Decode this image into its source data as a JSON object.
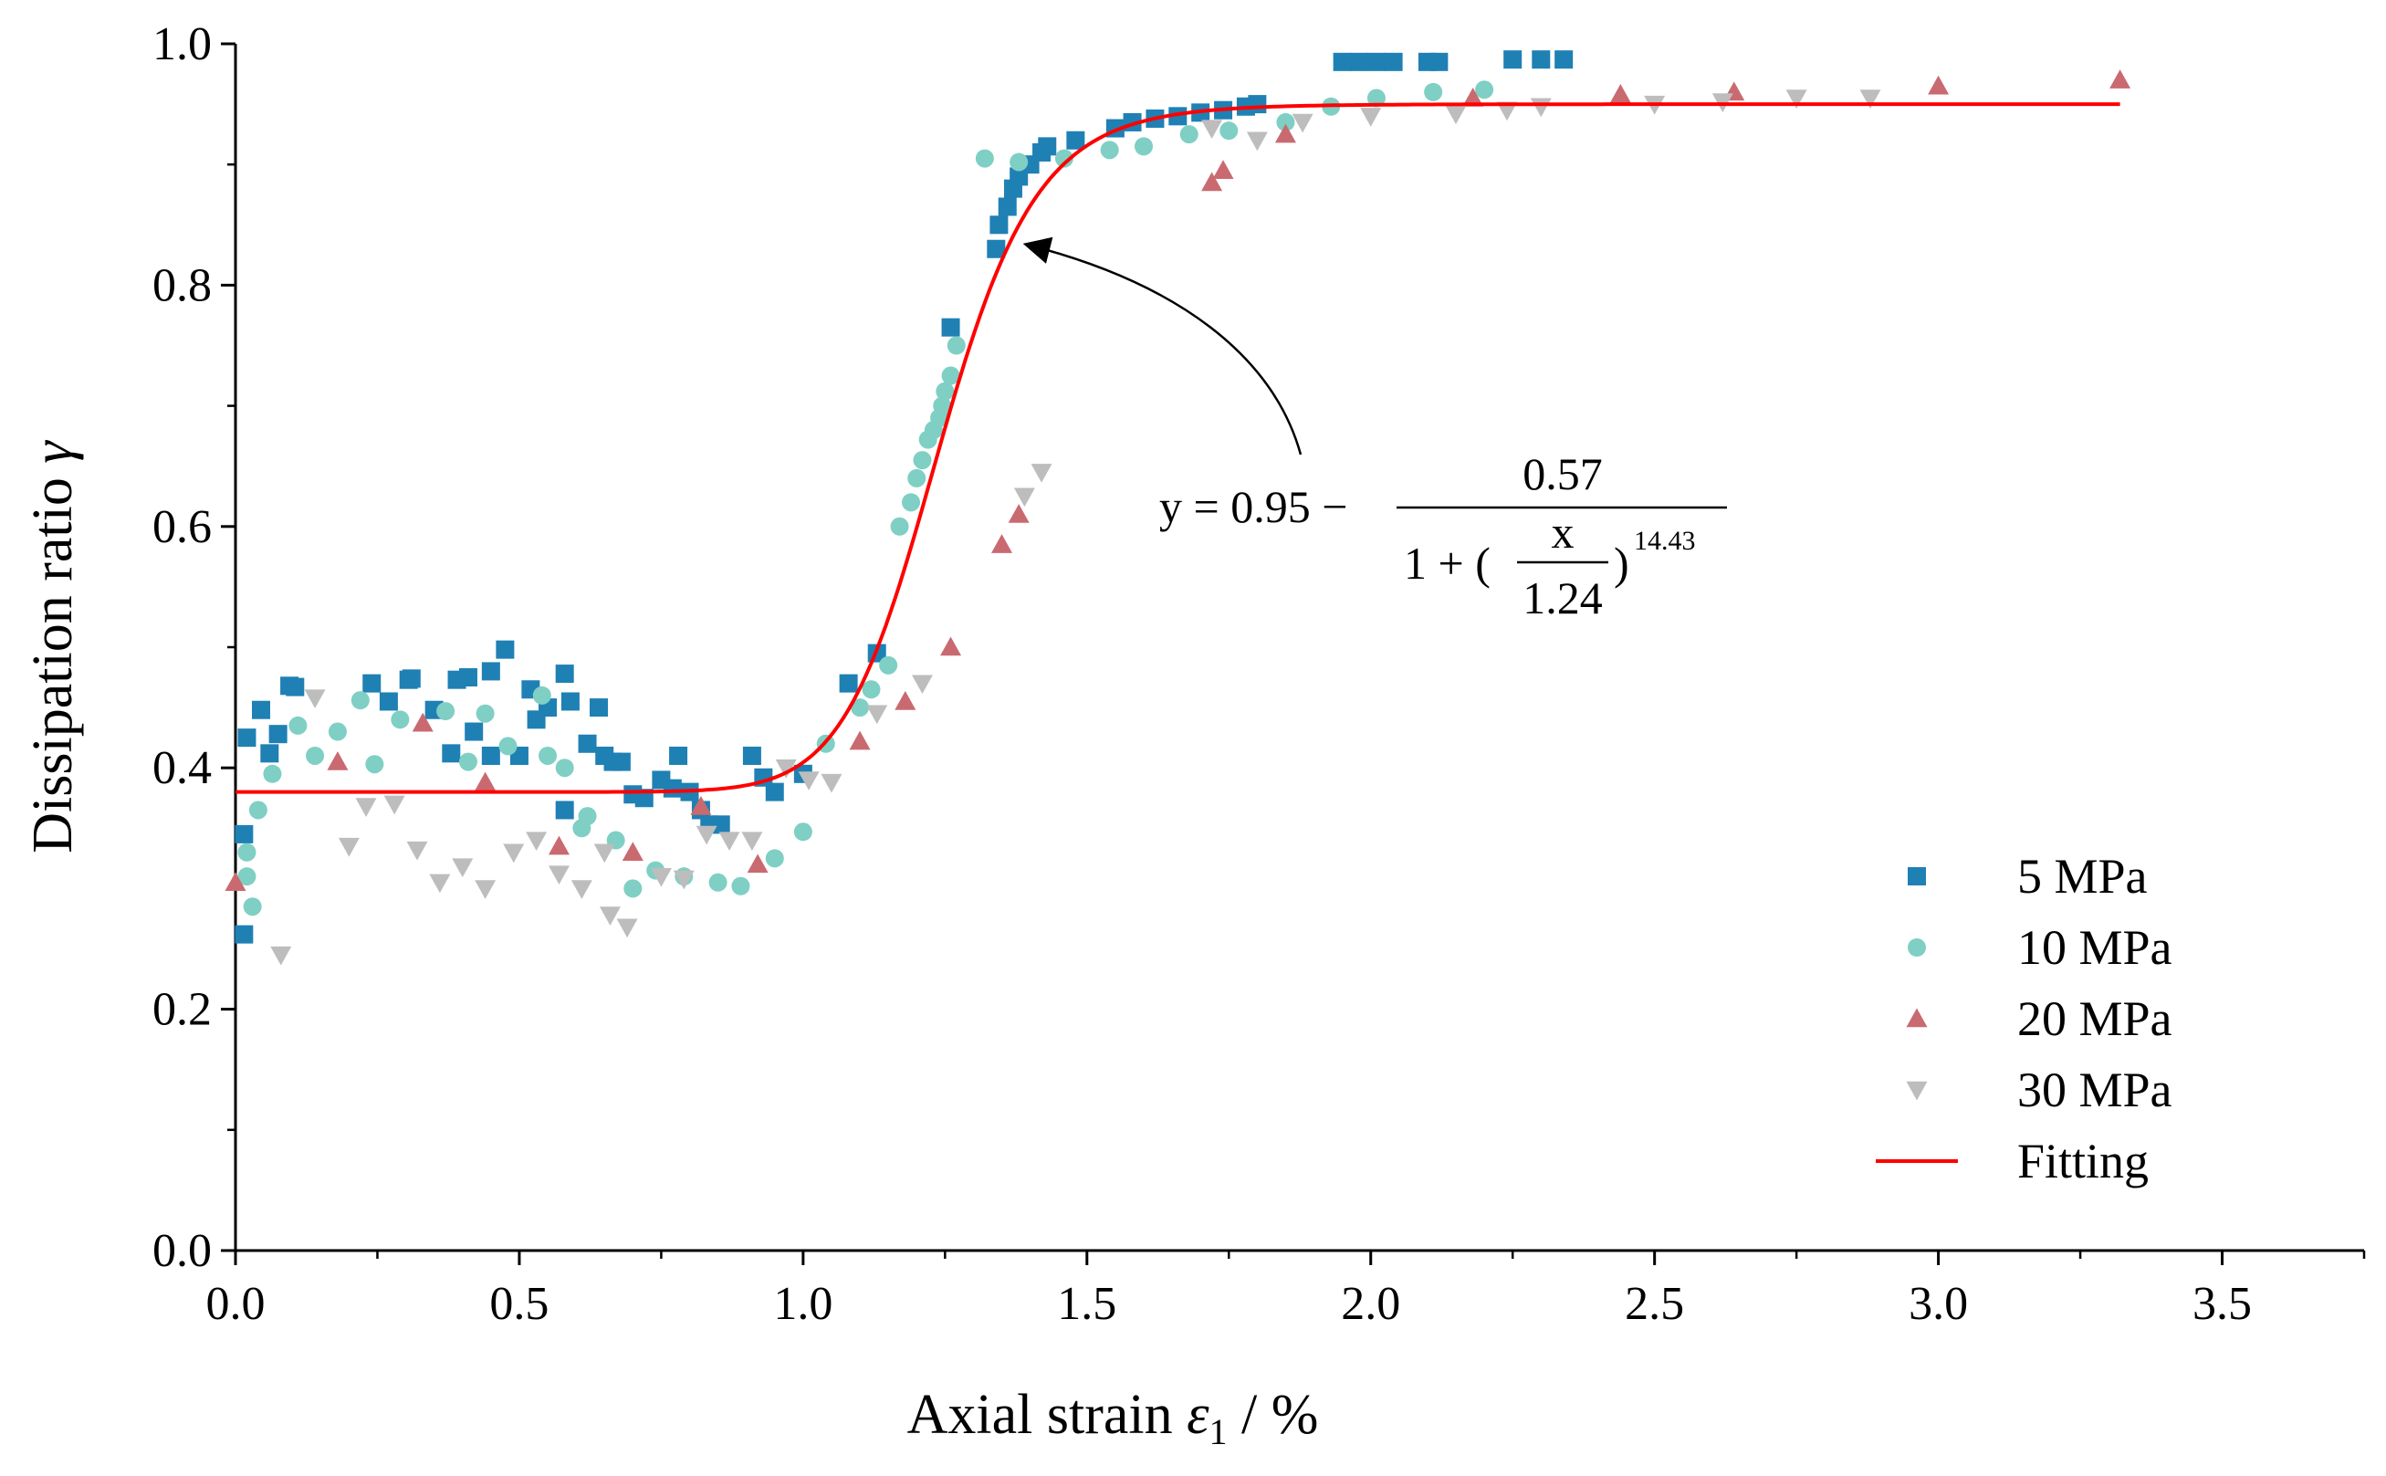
{
  "chart_data": {
    "type": "scatter",
    "xlabel": "Axial strain",
    "xlabel_symbol": "ε",
    "xlabel_subscript": "1",
    "xlabel_unit": "/ %",
    "ylabel": "Dissipation ratio",
    "ylabel_symbol": "γ",
    "xlim": [
      0,
      3.75
    ],
    "ylim": [
      0,
      1.0
    ],
    "xticks": [
      "0.0",
      "0.5",
      "1.0",
      "1.5",
      "2.0",
      "2.5",
      "3.0",
      "3.5"
    ],
    "yticks": [
      "0.0",
      "0.2",
      "0.4",
      "0.6",
      "0.8",
      "1.0"
    ],
    "grid": false,
    "legend_position": "bottom-right",
    "series": [
      {
        "name": "5  MPa",
        "marker": "square",
        "color": "#1f80b4",
        "points": [
          [
            0.015,
            0.262
          ],
          [
            0.015,
            0.345
          ],
          [
            0.02,
            0.425
          ],
          [
            0.045,
            0.448
          ],
          [
            0.06,
            0.412
          ],
          [
            0.075,
            0.428
          ],
          [
            0.095,
            0.468
          ],
          [
            0.105,
            0.467
          ],
          [
            0.24,
            0.47
          ],
          [
            0.27,
            0.455
          ],
          [
            0.305,
            0.473
          ],
          [
            0.31,
            0.474
          ],
          [
            0.35,
            0.448
          ],
          [
            0.38,
            0.412
          ],
          [
            0.39,
            0.473
          ],
          [
            0.41,
            0.475
          ],
          [
            0.42,
            0.43
          ],
          [
            0.45,
            0.41
          ],
          [
            0.45,
            0.48
          ],
          [
            0.475,
            0.498
          ],
          [
            0.5,
            0.41
          ],
          [
            0.52,
            0.465
          ],
          [
            0.53,
            0.44
          ],
          [
            0.55,
            0.45
          ],
          [
            0.58,
            0.478
          ],
          [
            0.59,
            0.455
          ],
          [
            0.58,
            0.365
          ],
          [
            0.62,
            0.42
          ],
          [
            0.64,
            0.45
          ],
          [
            0.65,
            0.41
          ],
          [
            0.665,
            0.405
          ],
          [
            0.68,
            0.405
          ],
          [
            0.7,
            0.378
          ],
          [
            0.72,
            0.375
          ],
          [
            0.75,
            0.39
          ],
          [
            0.77,
            0.383
          ],
          [
            0.78,
            0.41
          ],
          [
            0.8,
            0.38
          ],
          [
            0.82,
            0.365
          ],
          [
            0.835,
            0.353
          ],
          [
            0.855,
            0.353
          ],
          [
            0.91,
            0.41
          ],
          [
            0.93,
            0.392
          ],
          [
            0.95,
            0.38
          ],
          [
            1.0,
            0.395
          ],
          [
            1.08,
            0.47
          ],
          [
            1.13,
            0.495
          ],
          [
            1.26,
            0.765
          ],
          [
            1.34,
            0.83
          ],
          [
            1.345,
            0.85
          ],
          [
            1.36,
            0.865
          ],
          [
            1.37,
            0.88
          ],
          [
            1.38,
            0.89
          ],
          [
            1.4,
            0.9
          ],
          [
            1.42,
            0.91
          ],
          [
            1.43,
            0.915
          ],
          [
            1.48,
            0.92
          ],
          [
            1.55,
            0.93
          ],
          [
            1.58,
            0.935
          ],
          [
            1.62,
            0.938
          ],
          [
            1.66,
            0.94
          ],
          [
            1.7,
            0.943
          ],
          [
            1.74,
            0.945
          ],
          [
            1.78,
            0.948
          ],
          [
            1.8,
            0.95
          ],
          [
            1.95,
            0.985
          ],
          [
            1.98,
            0.985
          ],
          [
            2.01,
            0.985
          ],
          [
            2.04,
            0.985
          ],
          [
            2.1,
            0.985
          ],
          [
            2.12,
            0.985
          ],
          [
            2.25,
            0.987
          ],
          [
            2.3,
            0.987
          ],
          [
            2.34,
            0.987
          ]
        ]
      },
      {
        "name": "10 MPa",
        "marker": "circle",
        "color": "#7fcfc4",
        "points": [
          [
            0.02,
            0.31
          ],
          [
            0.02,
            0.33
          ],
          [
            0.03,
            0.285
          ],
          [
            0.04,
            0.365
          ],
          [
            0.065,
            0.395
          ],
          [
            0.11,
            0.435
          ],
          [
            0.14,
            0.41
          ],
          [
            0.18,
            0.43
          ],
          [
            0.22,
            0.456
          ],
          [
            0.245,
            0.403
          ],
          [
            0.29,
            0.44
          ],
          [
            0.37,
            0.447
          ],
          [
            0.41,
            0.405
          ],
          [
            0.44,
            0.445
          ],
          [
            0.48,
            0.418
          ],
          [
            0.54,
            0.46
          ],
          [
            0.55,
            0.41
          ],
          [
            0.58,
            0.4
          ],
          [
            0.61,
            0.35
          ],
          [
            0.62,
            0.36
          ],
          [
            0.67,
            0.34
          ],
          [
            0.7,
            0.3
          ],
          [
            0.74,
            0.315
          ],
          [
            0.79,
            0.31
          ],
          [
            0.85,
            0.305
          ],
          [
            0.89,
            0.302
          ],
          [
            0.95,
            0.325
          ],
          [
            1.0,
            0.347
          ],
          [
            1.04,
            0.42
          ],
          [
            1.1,
            0.45
          ],
          [
            1.12,
            0.465
          ],
          [
            1.15,
            0.485
          ],
          [
            1.17,
            0.6
          ],
          [
            1.19,
            0.62
          ],
          [
            1.2,
            0.64
          ],
          [
            1.21,
            0.655
          ],
          [
            1.22,
            0.672
          ],
          [
            1.23,
            0.68
          ],
          [
            1.24,
            0.69
          ],
          [
            1.245,
            0.7
          ],
          [
            1.25,
            0.712
          ],
          [
            1.26,
            0.725
          ],
          [
            1.27,
            0.75
          ],
          [
            1.32,
            0.905
          ],
          [
            1.38,
            0.902
          ],
          [
            1.46,
            0.905
          ],
          [
            1.54,
            0.912
          ],
          [
            1.6,
            0.915
          ],
          [
            1.68,
            0.925
          ],
          [
            1.75,
            0.928
          ],
          [
            1.85,
            0.935
          ],
          [
            1.93,
            0.948
          ],
          [
            2.01,
            0.955
          ],
          [
            2.11,
            0.96
          ],
          [
            2.2,
            0.962
          ]
        ]
      },
      {
        "name": "20 MPa",
        "marker": "triangle-up",
        "color": "#c96a70",
        "points": [
          [
            0.0,
            0.305
          ],
          [
            0.18,
            0.405
          ],
          [
            0.33,
            0.437
          ],
          [
            0.44,
            0.388
          ],
          [
            0.57,
            0.335
          ],
          [
            0.7,
            0.33
          ],
          [
            0.82,
            0.368
          ],
          [
            0.92,
            0.32
          ],
          [
            1.1,
            0.422
          ],
          [
            1.18,
            0.455
          ],
          [
            1.26,
            0.5
          ],
          [
            1.35,
            0.585
          ],
          [
            1.38,
            0.61
          ],
          [
            1.72,
            0.885
          ],
          [
            1.74,
            0.895
          ],
          [
            1.85,
            0.925
          ],
          [
            2.18,
            0.955
          ],
          [
            2.44,
            0.958
          ],
          [
            2.64,
            0.96
          ],
          [
            3.0,
            0.965
          ],
          [
            3.32,
            0.97
          ]
        ]
      },
      {
        "name": "30 MPa",
        "marker": "triangle-down",
        "color": "#bdbdbd",
        "points": [
          [
            0.08,
            0.245
          ],
          [
            0.14,
            0.458
          ],
          [
            0.2,
            0.335
          ],
          [
            0.23,
            0.368
          ],
          [
            0.28,
            0.37
          ],
          [
            0.32,
            0.332
          ],
          [
            0.36,
            0.305
          ],
          [
            0.4,
            0.318
          ],
          [
            0.44,
            0.3
          ],
          [
            0.49,
            0.33
          ],
          [
            0.53,
            0.34
          ],
          [
            0.57,
            0.312
          ],
          [
            0.61,
            0.3
          ],
          [
            0.65,
            0.33
          ],
          [
            0.66,
            0.278
          ],
          [
            0.69,
            0.268
          ],
          [
            0.75,
            0.31
          ],
          [
            0.79,
            0.308
          ],
          [
            0.83,
            0.345
          ],
          [
            0.87,
            0.34
          ],
          [
            0.91,
            0.34
          ],
          [
            0.97,
            0.4
          ],
          [
            1.01,
            0.39
          ],
          [
            1.05,
            0.388
          ],
          [
            1.13,
            0.445
          ],
          [
            1.21,
            0.47
          ],
          [
            1.39,
            0.625
          ],
          [
            1.42,
            0.645
          ],
          [
            1.72,
            0.93
          ],
          [
            1.8,
            0.92
          ],
          [
            1.88,
            0.935
          ],
          [
            2.0,
            0.94
          ],
          [
            2.15,
            0.942
          ],
          [
            2.24,
            0.945
          ],
          [
            2.3,
            0.948
          ],
          [
            2.5,
            0.95
          ],
          [
            2.62,
            0.952
          ],
          [
            2.75,
            0.955
          ],
          [
            2.88,
            0.955
          ]
        ]
      },
      {
        "name": "Fitting",
        "marker": "line",
        "color": "#ff0000",
        "model": {
          "A2": 0.95,
          "A1": 0.38,
          "x0": 1.24,
          "p": 14.43
        },
        "x_range": [
          0.0,
          3.32
        ]
      }
    ],
    "annotation": {
      "text_lhs": "y = 0.95 −",
      "numerator": "0.57",
      "den_prefix": "1 + (",
      "frac_num": "x",
      "frac_den": "1.24",
      "den_suffix": ")",
      "exponent": "14.43",
      "arrow_target": [
        1.35,
        0.835
      ]
    }
  }
}
